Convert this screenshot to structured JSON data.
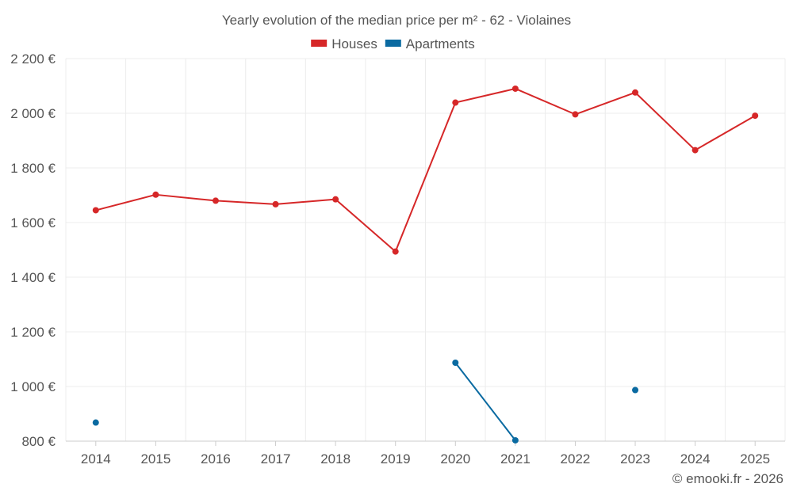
{
  "chart_data": {
    "type": "line",
    "title": "Yearly evolution of the median price per m² - 62 - Violaines",
    "categories": [
      "2014",
      "2015",
      "2016",
      "2017",
      "2018",
      "2019",
      "2020",
      "2021",
      "2022",
      "2023",
      "2024",
      "2025"
    ],
    "series": [
      {
        "name": "Houses",
        "color": "#d62728",
        "values": [
          1645,
          1702,
          1680,
          1667,
          1685,
          1494,
          2039,
          2090,
          1996,
          2076,
          1865,
          1991
        ]
      },
      {
        "name": "Apartments",
        "color": "#0a6aa1",
        "values": [
          868,
          null,
          null,
          null,
          null,
          null,
          1087,
          803,
          null,
          987,
          null,
          null
        ]
      }
    ],
    "ylim": [
      800,
      2200
    ],
    "yticks": [
      800,
      1000,
      1200,
      1400,
      1600,
      1800,
      2000,
      2200
    ],
    "ytick_labels": [
      "800 €",
      "1 000 €",
      "1 200 €",
      "1 400 €",
      "1 600 €",
      "1 800 €",
      "2 000 €",
      "2 200 €"
    ],
    "grid": true,
    "legend_position": "top-center"
  },
  "footer": {
    "copyright": "© emooki.fr - 2026"
  }
}
